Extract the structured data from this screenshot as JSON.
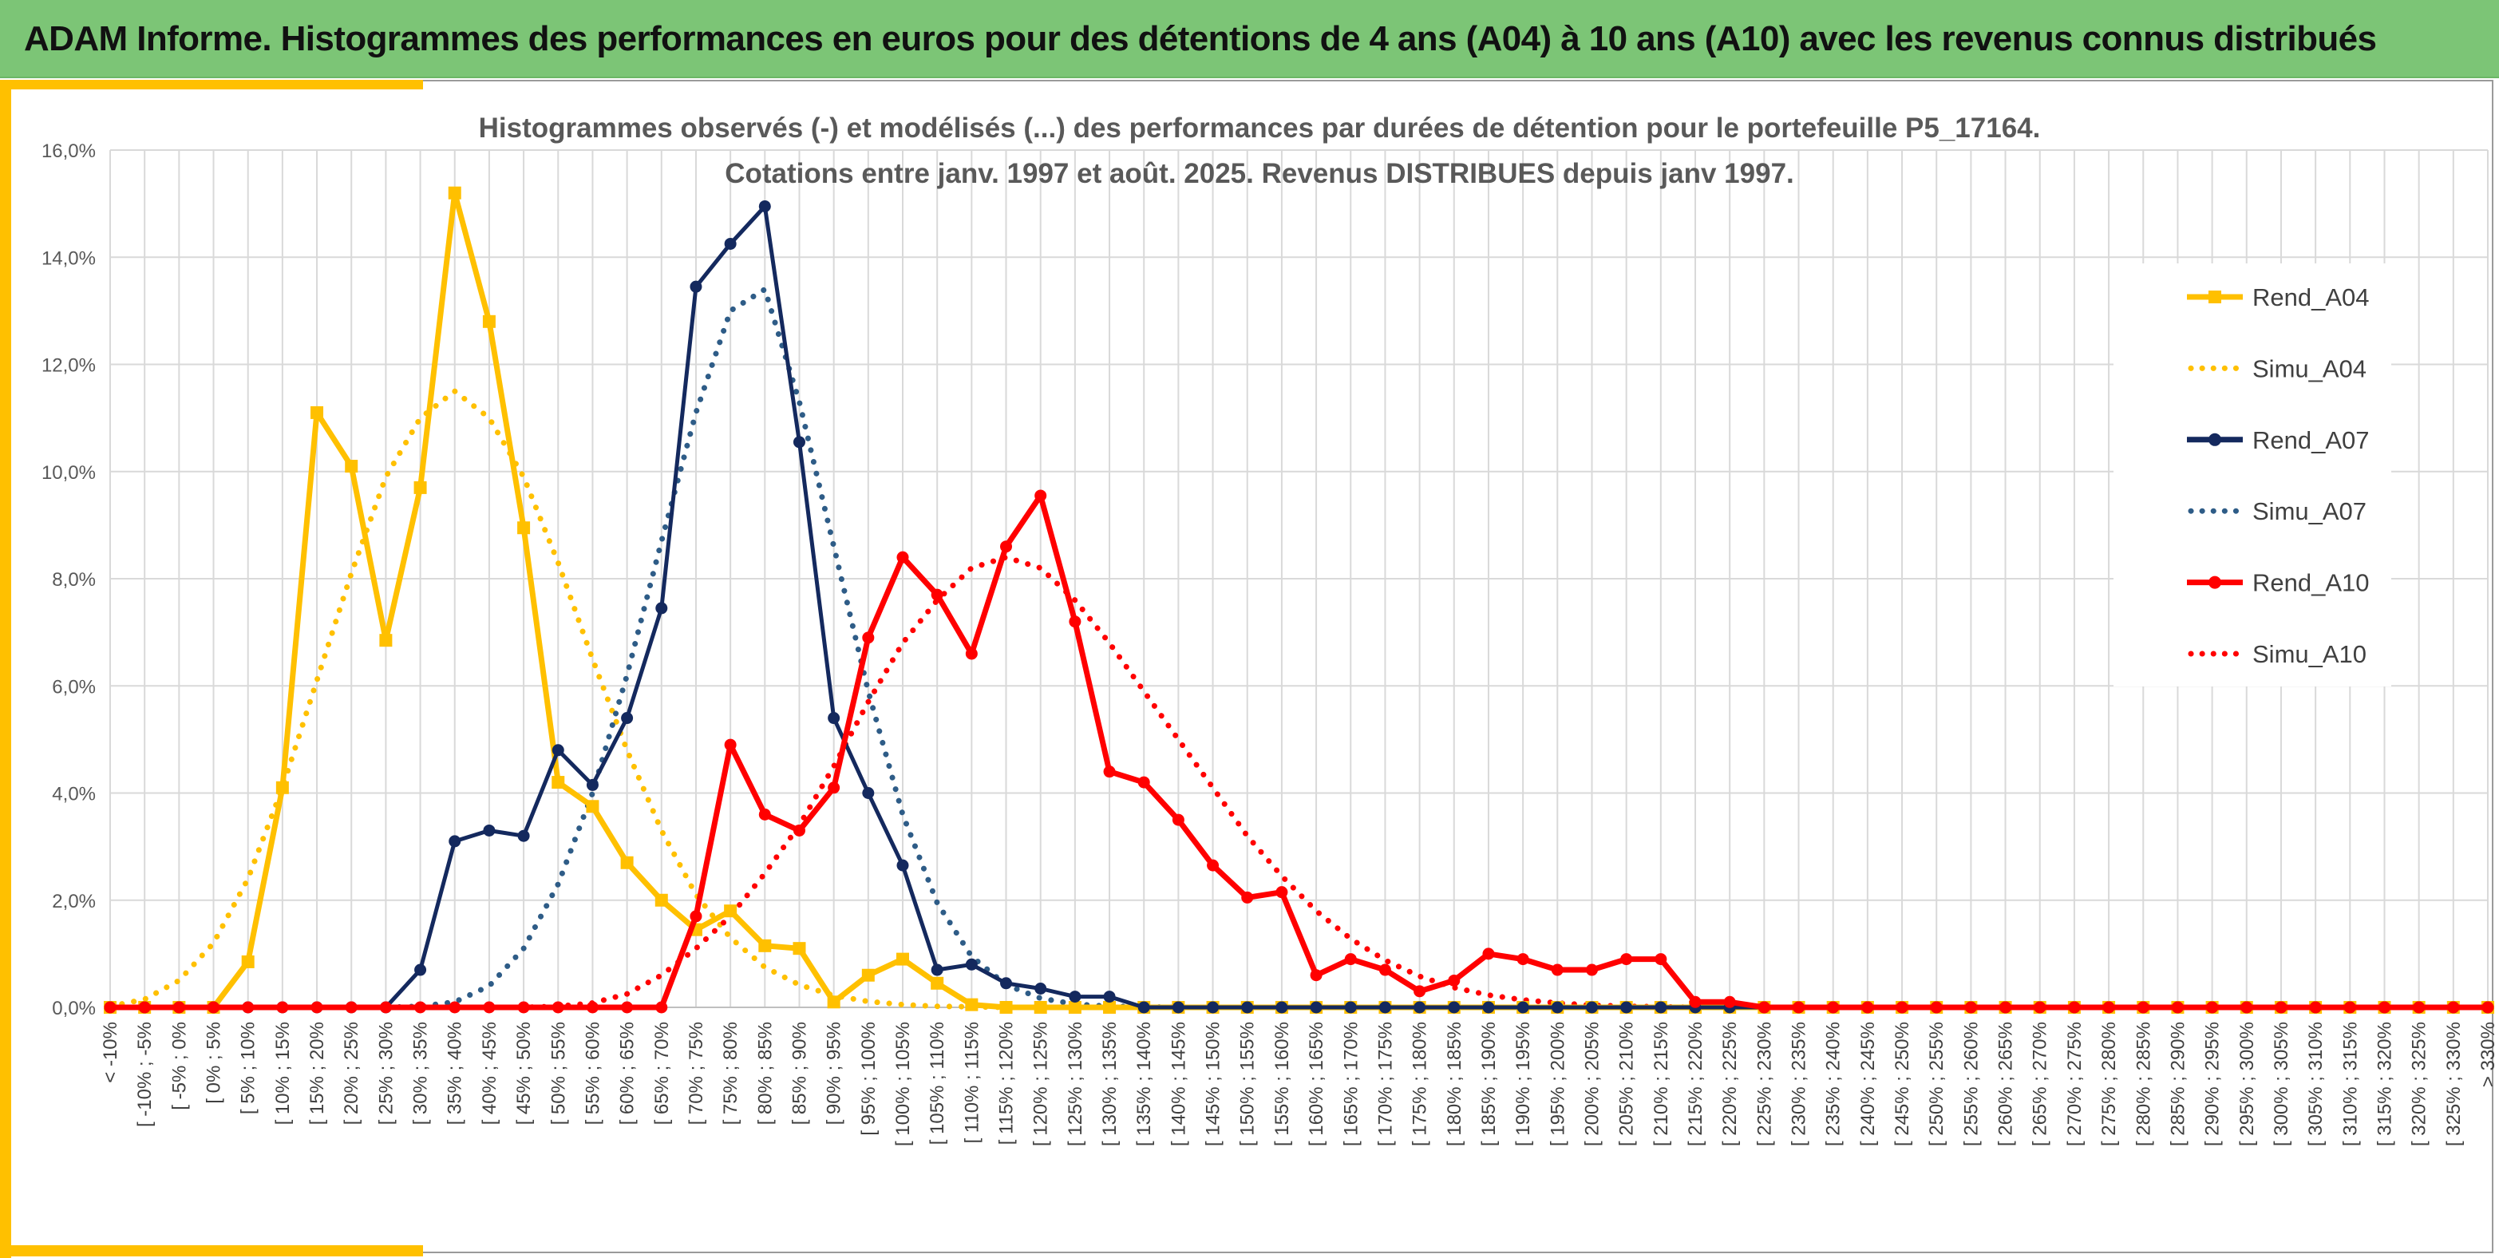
{
  "banner": {
    "title": "ADAM Informe. Histogrammes des performances en euros pour des détentions de 4 ans (A04) à 10 ans (A10) avec les revenus connus distribués"
  },
  "chart_data": {
    "type": "line",
    "title_line1": "Histogrammes observés (-) et modélisés (...) des performances par durées de détention pour le portefeuille P5_17164.",
    "title_line2": "Cotations entre janv. 1997 et août. 2025. Revenus DISTRIBUES depuis janv 1997.",
    "ylim": [
      0,
      16
    ],
    "y_ticks": [
      "0,0%",
      "2,0%",
      "4,0%",
      "6,0%",
      "8,0%",
      "10,0%",
      "12,0%",
      "14,0%",
      "16,0%"
    ],
    "grid": true,
    "legend_position": "right",
    "categories": [
      "< -10%",
      "[ -10% ; -5%",
      "[ -5% ; 0%",
      "[ 0% ; 5%",
      "[ 5% ; 10%",
      "[ 10% ; 15%",
      "[ 15% ; 20%",
      "[ 20% ; 25%",
      "[ 25% ; 30%",
      "[ 30% ; 35%",
      "[ 35% ; 40%",
      "[ 40% ; 45%",
      "[ 45% ; 50%",
      "[ 50% ; 55%",
      "[ 55% ; 60%",
      "[ 60% ; 65%",
      "[ 65% ; 70%",
      "[ 70% ; 75%",
      "[ 75% ; 80%",
      "[ 80% ; 85%",
      "[ 85% ; 90%",
      "[ 90% ; 95%",
      "[ 95% ; 100%",
      "[ 100% ; 105%",
      "[ 105% ; 110%",
      "[ 110% ; 115%",
      "[ 115% ; 120%",
      "[ 120% ; 125%",
      "[ 125% ; 130%",
      "[ 130% ; 135%",
      "[ 135% ; 140%",
      "[ 140% ; 145%",
      "[ 145% ; 150%",
      "[ 150% ; 155%",
      "[ 155% ; 160%",
      "[ 160% ; 165%",
      "[ 165% ; 170%",
      "[ 170% ; 175%",
      "[ 175% ; 180%",
      "[ 180% ; 185%",
      "[ 185% ; 190%",
      "[ 190% ; 195%",
      "[ 195% ; 200%",
      "[ 200% ; 205%",
      "[ 205% ; 210%",
      "[ 210% ; 215%",
      "[ 215% ; 220%",
      "[ 220% ; 225%",
      "[ 225% ; 230%",
      "[ 230% ; 235%",
      "[ 235% ; 240%",
      "[ 240% ; 245%",
      "[ 245% ; 250%",
      "[ 250% ; 255%",
      "[ 255% ; 260%",
      "[ 260% ; 265%",
      "[ 265% ; 270%",
      "[ 270% ; 275%",
      "[ 275% ; 280%",
      "[ 280% ; 285%",
      "[ 285% ; 290%",
      "[ 290% ; 295%",
      "[ 295% ; 300%",
      "[ 300% ; 305%",
      "[ 305% ; 310%",
      "[ 310% ; 315%",
      "[ 315% ; 320%",
      "[ 320% ; 325%",
      "[ 325% ; 330%",
      "> 330%"
    ],
    "series": [
      {
        "name": "Rend_A04",
        "color": "#ffc000",
        "style": "solid",
        "marker": "square",
        "values": [
          0,
          0,
          0,
          0,
          0.85,
          4.1,
          11.1,
          10.1,
          6.85,
          9.7,
          15.2,
          12.8,
          8.95,
          4.2,
          3.75,
          2.7,
          2.0,
          1.45,
          1.8,
          1.15,
          1.1,
          0.1,
          0.6,
          0.9,
          0.45,
          0.05,
          0,
          0,
          0,
          0,
          0,
          0,
          0,
          0,
          0,
          0,
          0,
          0,
          0,
          0,
          0,
          0,
          0,
          0,
          0,
          0,
          0,
          0,
          0,
          0,
          0,
          0,
          0,
          0,
          0,
          0,
          0,
          0,
          0,
          0,
          0,
          0,
          0,
          0,
          0,
          0,
          0,
          0,
          0,
          0
        ]
      },
      {
        "name": "Simu_A04",
        "color": "#ffc000",
        "style": "dotted",
        "values": [
          0.02,
          0.15,
          0.5,
          1.2,
          2.4,
          4.1,
          6.1,
          8.1,
          9.9,
          11.0,
          11.5,
          11.0,
          9.9,
          8.3,
          6.5,
          4.8,
          3.3,
          2.1,
          1.3,
          0.75,
          0.42,
          0.22,
          0.11,
          0.05,
          0.02,
          0.01,
          0,
          0,
          0,
          0,
          0,
          0,
          0,
          0,
          0,
          0,
          0,
          0,
          0,
          0,
          0,
          0,
          0,
          0,
          0,
          0,
          0,
          0,
          0,
          0,
          0,
          0,
          0,
          0,
          0,
          0,
          0,
          0,
          0,
          0,
          0,
          0,
          0,
          0,
          0,
          0,
          0,
          0,
          0,
          0
        ]
      },
      {
        "name": "Rend_A07",
        "color": "#14295e",
        "style": "solid",
        "marker": "circle",
        "values": [
          0,
          0,
          0,
          0,
          0,
          0,
          0,
          0,
          0,
          0.7,
          3.1,
          3.3,
          3.2,
          4.8,
          4.15,
          5.4,
          7.45,
          13.45,
          14.25,
          14.95,
          10.55,
          5.4,
          4.0,
          2.65,
          0.7,
          0.8,
          0.45,
          0.35,
          0.2,
          0.2,
          0,
          0,
          0,
          0,
          0,
          0,
          0,
          0,
          0,
          0,
          0,
          0,
          0,
          0,
          0,
          0,
          0,
          0,
          0,
          0,
          0,
          0,
          0,
          0,
          0,
          0,
          0,
          0,
          0,
          0,
          0,
          0,
          0,
          0,
          0,
          0,
          0,
          0,
          0,
          0
        ]
      },
      {
        "name": "Simu_A07",
        "color": "#2e5c87",
        "style": "dotted",
        "values": [
          0,
          0,
          0,
          0,
          0,
          0,
          0,
          0,
          0,
          0.02,
          0.1,
          0.4,
          1.1,
          2.3,
          4.0,
          6.2,
          8.7,
          11.1,
          13.0,
          13.4,
          11.3,
          8.6,
          5.9,
          3.6,
          1.95,
          0.95,
          0.42,
          0.17,
          0.06,
          0.02,
          0.01,
          0,
          0,
          0,
          0,
          0,
          0,
          0,
          0,
          0,
          0,
          0,
          0,
          0,
          0,
          0,
          0,
          0,
          0,
          0,
          0,
          0,
          0,
          0,
          0,
          0,
          0,
          0,
          0,
          0,
          0,
          0,
          0,
          0,
          0,
          0,
          0,
          0,
          0,
          0
        ]
      },
      {
        "name": "Rend_A10",
        "color": "#ff0000",
        "style": "solid",
        "marker": "circle",
        "values": [
          0,
          0,
          0,
          0,
          0,
          0,
          0,
          0,
          0,
          0,
          0,
          0,
          0,
          0,
          0,
          0,
          0,
          1.7,
          4.9,
          3.6,
          3.3,
          4.1,
          6.9,
          8.4,
          7.7,
          6.6,
          8.6,
          9.55,
          7.2,
          4.4,
          4.2,
          3.5,
          2.65,
          2.05,
          2.15,
          0.6,
          0.9,
          0.7,
          0.3,
          0.5,
          1.0,
          0.9,
          0.7,
          0.7,
          0.9,
          0.9,
          0.1,
          0.1,
          0,
          0,
          0,
          0,
          0,
          0,
          0,
          0,
          0,
          0,
          0,
          0,
          0,
          0,
          0,
          0,
          0,
          0,
          0,
          0,
          0,
          0
        ]
      },
      {
        "name": "Simu_A10",
        "color": "#ff0000",
        "style": "dotted",
        "values": [
          0,
          0,
          0,
          0,
          0,
          0,
          0,
          0,
          0,
          0,
          0,
          0,
          0,
          0.02,
          0.08,
          0.25,
          0.6,
          1.1,
          1.7,
          2.5,
          3.4,
          4.5,
          5.7,
          6.8,
          7.6,
          8.2,
          8.4,
          8.2,
          7.6,
          6.8,
          5.9,
          5.0,
          4.1,
          3.2,
          2.45,
          1.8,
          1.28,
          0.88,
          0.58,
          0.37,
          0.23,
          0.14,
          0.08,
          0.04,
          0.02,
          0.01,
          0,
          0,
          0,
          0,
          0,
          0,
          0,
          0,
          0,
          0,
          0,
          0,
          0,
          0,
          0,
          0,
          0,
          0,
          0,
          0,
          0,
          0,
          0,
          0
        ]
      }
    ]
  }
}
